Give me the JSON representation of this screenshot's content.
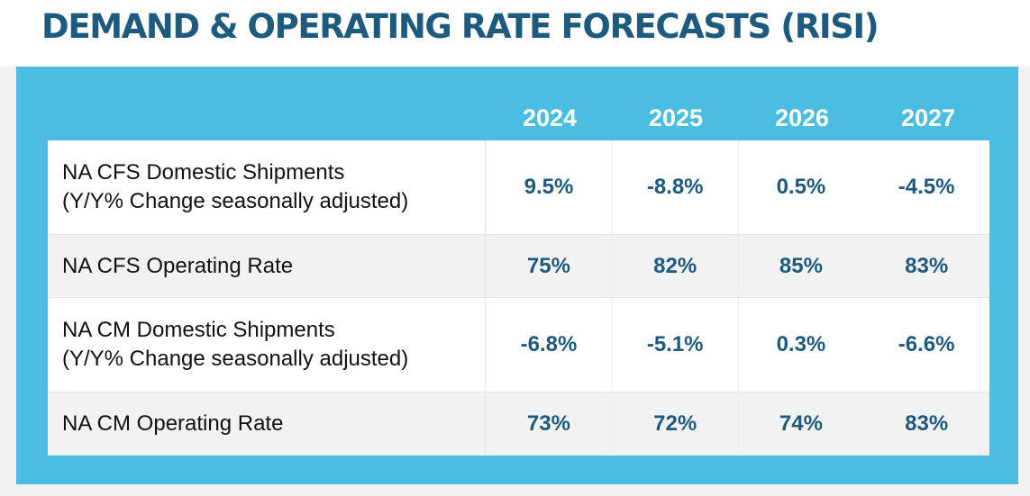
{
  "title": "DEMAND & OPERATING RATE FORECASTS (RISI)",
  "years": [
    "2024",
    "2025",
    "2026",
    "2027"
  ],
  "rows": [
    {
      "label_lines": [
        "NA CFS Domestic Shipments",
        "(Y/Y% Change seasonally adjusted)"
      ],
      "values": [
        "9.5%",
        "-8.8%",
        "0.5%",
        "-4.5%"
      ]
    },
    {
      "label_lines": [
        "NA CFS Operating Rate"
      ],
      "values": [
        "75%",
        "82%",
        "85%",
        "83%"
      ]
    },
    {
      "label_lines": [
        "NA CM Domestic Shipments",
        "(Y/Y% Change seasonally adjusted)"
      ],
      "values": [
        "-6.8%",
        "-5.1%",
        "0.3%",
        "-6.6%"
      ]
    },
    {
      "label_lines": [
        "NA CM Operating Rate"
      ],
      "values": [
        "73%",
        "72%",
        "74%",
        "83%"
      ]
    }
  ],
  "colors": {
    "title": "#1e5a7d",
    "panel": "#4bbde0",
    "value_text": "#1e5a7d",
    "shaded_row": "#f2f2f2"
  }
}
